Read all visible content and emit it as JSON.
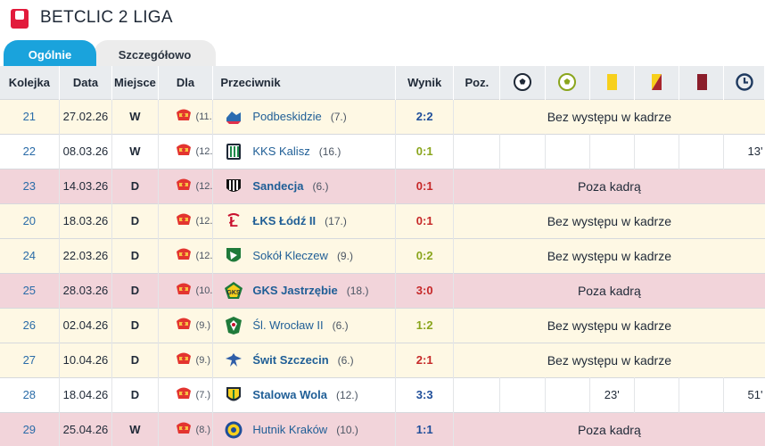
{
  "header": {
    "logo_text": "Betclic 2",
    "league_title": "BETCLIC 2 LIGA"
  },
  "tabs": [
    {
      "label": "Ogólnie",
      "active": true
    },
    {
      "label": "Szczegółowo",
      "active": false
    }
  ],
  "columns": {
    "round": "Kolejka",
    "date": "Data",
    "place": "Miejsce",
    "team": "Dla",
    "opponent": "Przeciwnik",
    "result": "Wynik",
    "position": "Poz.",
    "icons": [
      "goal-icon",
      "assist-icon",
      "yellow-card-icon",
      "second-yellow-icon",
      "red-card-icon",
      "minutes-icon"
    ]
  },
  "rows": [
    {
      "round": "21",
      "date": "27.02.26",
      "place": "W",
      "team_pos": "(11.)",
      "opponent": "Podbeskidzie",
      "opp_pos": "(7.)",
      "opp_bold": false,
      "result": "2:2",
      "result_type": "draw",
      "row_style": "yellow",
      "note": "Bez występu w kadrze",
      "badge": "podbeskidzie"
    },
    {
      "round": "22",
      "date": "08.03.26",
      "place": "W",
      "team_pos": "(12.)",
      "opponent": "KKS Kalisz",
      "opp_pos": "(16.)",
      "opp_bold": false,
      "result": "0:1",
      "result_type": "win",
      "row_style": "white",
      "note": "",
      "minutes": "13'",
      "badge": "kalisz"
    },
    {
      "round": "23",
      "date": "14.03.26",
      "place": "D",
      "team_pos": "(12.)",
      "opponent": "Sandecja",
      "opp_pos": "(6.)",
      "opp_bold": true,
      "result": "0:1",
      "result_type": "loss",
      "row_style": "pink",
      "note": "Poza kadrą",
      "badge": "sandecja"
    },
    {
      "round": "20",
      "date": "18.03.26",
      "place": "D",
      "team_pos": "(12.)",
      "opponent": "ŁKS Łódź II",
      "opp_pos": "(17.)",
      "opp_bold": true,
      "result": "0:1",
      "result_type": "loss",
      "row_style": "yellow",
      "note": "Bez występu w kadrze",
      "badge": "lks"
    },
    {
      "round": "24",
      "date": "22.03.26",
      "place": "D",
      "team_pos": "(12.)",
      "opponent": "Sokół Kleczew",
      "opp_pos": "(9.)",
      "opp_bold": false,
      "result": "0:2",
      "result_type": "win",
      "row_style": "yellow",
      "note": "Bez występu w kadrze",
      "badge": "sokol"
    },
    {
      "round": "25",
      "date": "28.03.26",
      "place": "D",
      "team_pos": "(10.)",
      "opponent": "GKS Jastrzębie",
      "opp_pos": "(18.)",
      "opp_bold": true,
      "result": "3:0",
      "result_type": "loss",
      "row_style": "pink",
      "note": "Poza kadrą",
      "badge": "jastrzebie"
    },
    {
      "round": "26",
      "date": "02.04.26",
      "place": "D",
      "team_pos": "(9.)",
      "opponent": "Śl. Wrocław II",
      "opp_pos": "(6.)",
      "opp_bold": false,
      "result": "1:2",
      "result_type": "win",
      "row_style": "yellow",
      "note": "Bez występu w kadrze",
      "badge": "slask"
    },
    {
      "round": "27",
      "date": "10.04.26",
      "place": "D",
      "team_pos": "(9.)",
      "opponent": "Świt Szczecin",
      "opp_pos": "(6.)",
      "opp_bold": true,
      "result": "2:1",
      "result_type": "loss",
      "row_style": "yellow",
      "note": "Bez występu w kadrze",
      "badge": "swit"
    },
    {
      "round": "28",
      "date": "18.04.26",
      "place": "D",
      "team_pos": "(7.)",
      "opponent": "Stalowa Wola",
      "opp_pos": "(12.)",
      "opp_bold": true,
      "result": "3:3",
      "result_type": "draw",
      "row_style": "white",
      "note": "",
      "yellow_min": "23'",
      "minutes": "51'",
      "badge": "stalowa"
    },
    {
      "round": "29",
      "date": "25.04.26",
      "place": "W",
      "team_pos": "(8.)",
      "opponent": "Hutnik Kraków",
      "opp_pos": "(10.)",
      "opp_bold": false,
      "result": "1:1",
      "result_type": "draw",
      "row_style": "pink",
      "note": "Poza kadrą",
      "badge": "hutnik"
    }
  ],
  "colors": {
    "accent": "#1aa3dc",
    "row_yellow": "#fef8e4",
    "row_pink": "#f2d4da",
    "header_bg": "#e9ecef",
    "win": "#8aa51c",
    "loss": "#c62828",
    "draw": "#1f4e9a"
  }
}
